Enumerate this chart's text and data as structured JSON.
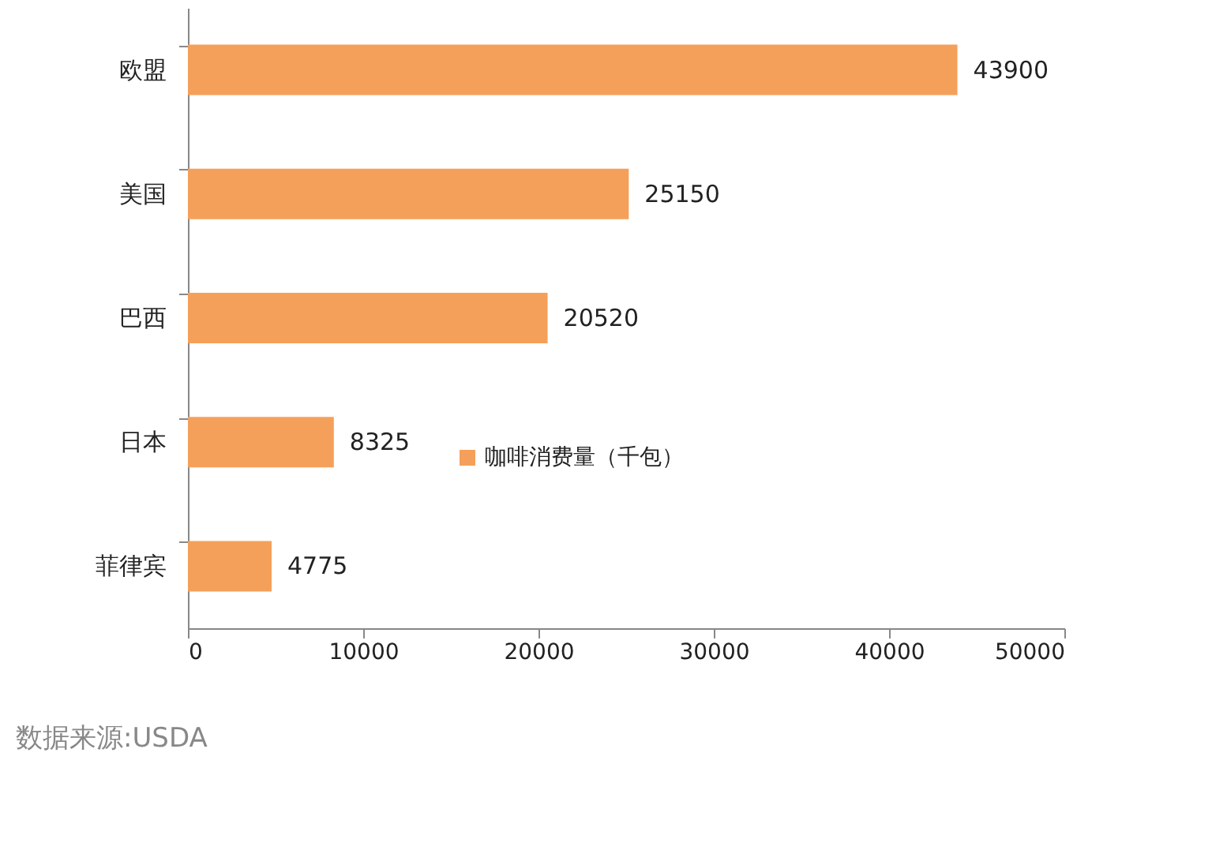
{
  "chart_data": {
    "type": "bar",
    "orientation": "horizontal",
    "categories": [
      "欧盟",
      "美国",
      "巴西",
      "日本",
      "菲律宾"
    ],
    "series": [
      {
        "name": "咖啡消费量（千包）",
        "color": "#f5a05a",
        "values": [
          43900,
          25150,
          20520,
          8325,
          4775
        ]
      }
    ],
    "xlim": [
      0,
      50000
    ],
    "xticks": [
      0,
      10000,
      20000,
      30000,
      40000,
      50000
    ],
    "data_labels": true,
    "grid": false,
    "legend": "bottom",
    "annotations": [
      "数据来源:USDA"
    ]
  }
}
